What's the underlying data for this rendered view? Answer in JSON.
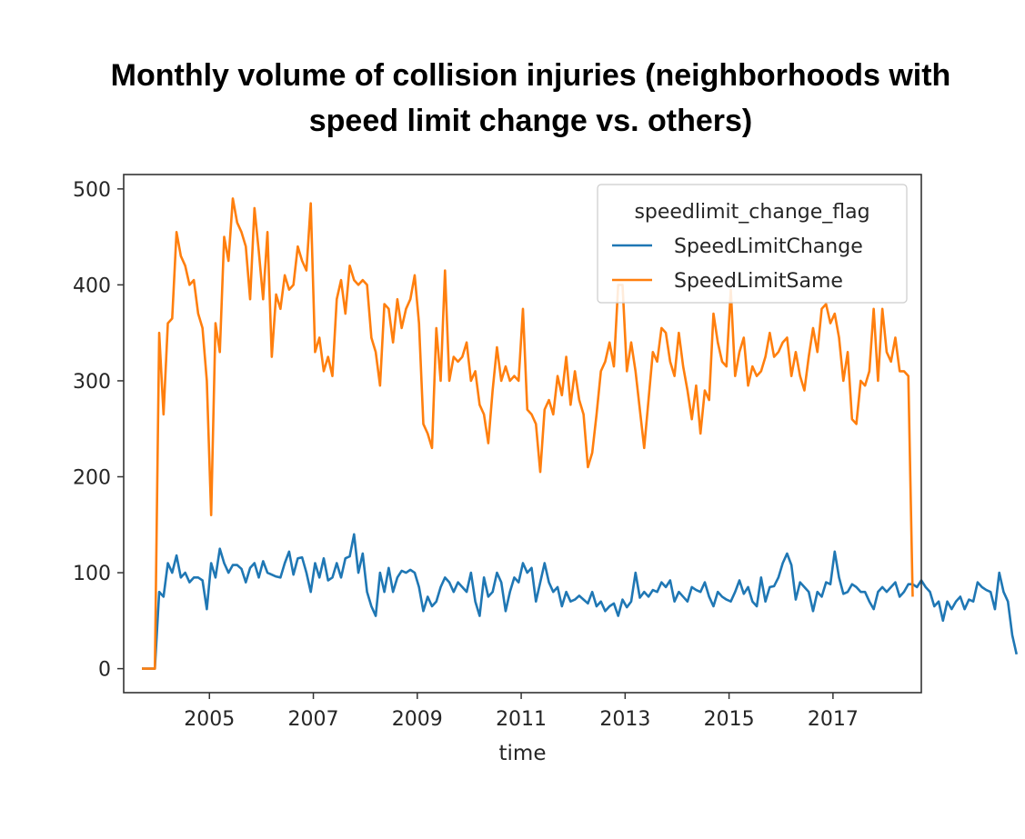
{
  "title_line1": "Monthly volume of collision injuries (neighborhoods with",
  "title_line2": "speed limit change vs. others)",
  "chart_data": {
    "type": "line",
    "title": "Monthly volume of collision injuries (neighborhoods with speed limit change vs. others)",
    "xlabel": "time",
    "ylabel": "",
    "xlim": [
      2003.35,
      2018.7
    ],
    "ylim": [
      -25,
      515
    ],
    "x_ticks": [
      2005,
      2007,
      2009,
      2011,
      2013,
      2015,
      2017
    ],
    "x_tick_labels": [
      "2005",
      "2007",
      "2009",
      "2011",
      "2013",
      "2015",
      "2017"
    ],
    "y_ticks": [
      0,
      100,
      200,
      300,
      400,
      500
    ],
    "y_tick_labels": [
      "0",
      "100",
      "200",
      "300",
      "400",
      "500"
    ],
    "grid": false,
    "legend": {
      "title": "speedlimit_change_flag",
      "placement": "top-right"
    },
    "x_start": 2003.7,
    "x_step": 0.0833333,
    "series": [
      {
        "name": "SpeedLimitChange",
        "color": "#1f77b4",
        "values": [
          0,
          0,
          0,
          0,
          80,
          75,
          110,
          100,
          118,
          95,
          100,
          90,
          95,
          95,
          92,
          62,
          110,
          95,
          125,
          110,
          100,
          108,
          108,
          104,
          90,
          105,
          110,
          95,
          112,
          100,
          98,
          96,
          95,
          110,
          122,
          98,
          115,
          116,
          100,
          80,
          110,
          95,
          115,
          92,
          95,
          110,
          95,
          115,
          117,
          140,
          100,
          120,
          80,
          65,
          55,
          100,
          80,
          105,
          80,
          95,
          102,
          100,
          103,
          100,
          85,
          60,
          75,
          65,
          70,
          85,
          95,
          90,
          80,
          90,
          85,
          80,
          100,
          70,
          55,
          95,
          75,
          80,
          100,
          90,
          60,
          80,
          95,
          90,
          110,
          100,
          105,
          70,
          90,
          110,
          90,
          80,
          85,
          65,
          80,
          70,
          72,
          76,
          72,
          68,
          80,
          65,
          70,
          60,
          65,
          68,
          55,
          72,
          64,
          70,
          100,
          74,
          80,
          75,
          82,
          80,
          90,
          85,
          92,
          70,
          80,
          75,
          70,
          85,
          82,
          80,
          90,
          75,
          65,
          80,
          75,
          72,
          70,
          80,
          92,
          78,
          85,
          70,
          65,
          95,
          70,
          85,
          86,
          95,
          110,
          120,
          108,
          72,
          90,
          85,
          80,
          60,
          80,
          75,
          90,
          88,
          122,
          95,
          78,
          80,
          88,
          85,
          80,
          80,
          70,
          62,
          80,
          85,
          80,
          85,
          90,
          75,
          80,
          88,
          88,
          85,
          92,
          85,
          80,
          65,
          70,
          50,
          70,
          62,
          70,
          75,
          62,
          72,
          70,
          90,
          85,
          82,
          80,
          62,
          100,
          80,
          70,
          35,
          15
        ],
        "note": ""
      },
      {
        "name": "SpeedLimitSame",
        "color": "#ff7f0e",
        "values": [
          0,
          0,
          0,
          0,
          350,
          265,
          360,
          365,
          455,
          430,
          420,
          400,
          405,
          370,
          355,
          300,
          160,
          360,
          330,
          450,
          425,
          490,
          465,
          455,
          440,
          385,
          480,
          435,
          385,
          455,
          325,
          390,
          375,
          410,
          395,
          400,
          440,
          425,
          415,
          485,
          330,
          345,
          310,
          325,
          305,
          385,
          405,
          370,
          420,
          405,
          400,
          405,
          400,
          345,
          330,
          295,
          380,
          375,
          340,
          385,
          355,
          375,
          385,
          410,
          360,
          255,
          245,
          230,
          355,
          300,
          415,
          300,
          325,
          320,
          325,
          340,
          300,
          310,
          275,
          265,
          235,
          290,
          335,
          300,
          315,
          300,
          305,
          300,
          375,
          270,
          265,
          255,
          205,
          270,
          280,
          265,
          305,
          285,
          325,
          275,
          310,
          280,
          265,
          210,
          225,
          265,
          310,
          320,
          340,
          315,
          400,
          400,
          310,
          340,
          310,
          270,
          230,
          280,
          330,
          320,
          355,
          350,
          320,
          305,
          350,
          315,
          290,
          260,
          295,
          245,
          290,
          280,
          370,
          340,
          320,
          315,
          395,
          305,
          330,
          345,
          295,
          315,
          305,
          310,
          325,
          350,
          325,
          330,
          340,
          345,
          305,
          330,
          305,
          290,
          325,
          355,
          330,
          375,
          380,
          360,
          370,
          345,
          300,
          330,
          260,
          255,
          300,
          295,
          310,
          375,
          300,
          375,
          330,
          320,
          345,
          310,
          310,
          305,
          75
        ],
        "note": ""
      }
    ]
  }
}
